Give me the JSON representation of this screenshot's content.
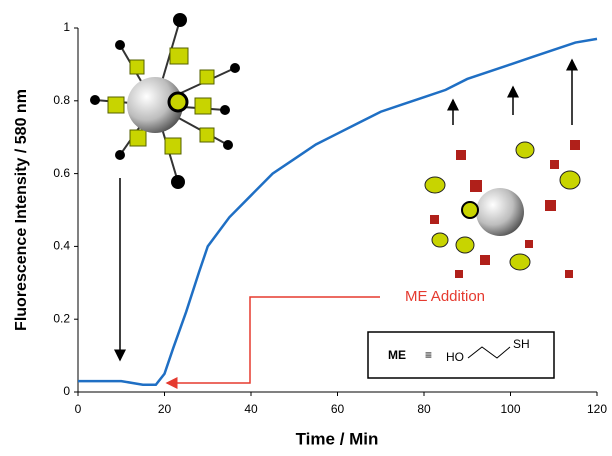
{
  "chart_data": {
    "type": "line",
    "x_label": "Time / Min",
    "y_label": "Fluorescence Intensity / 580 nm",
    "x": [
      0,
      5,
      10,
      15,
      18,
      20,
      22,
      25,
      28,
      30,
      35,
      40,
      45,
      50,
      55,
      60,
      65,
      70,
      75,
      80,
      85,
      90,
      95,
      100,
      105,
      110,
      115,
      120
    ],
    "series": [
      {
        "color": "#1f6fc4",
        "values": [
          0.03,
          0.03,
          0.03,
          0.02,
          0.02,
          0.05,
          0.12,
          0.22,
          0.33,
          0.4,
          0.48,
          0.54,
          0.6,
          0.64,
          0.68,
          0.71,
          0.74,
          0.77,
          0.79,
          0.81,
          0.83,
          0.86,
          0.88,
          0.9,
          0.92,
          0.94,
          0.96,
          0.97
        ]
      }
    ],
    "xlim": [
      0,
      120
    ],
    "xticks": [
      0,
      20,
      40,
      60,
      80,
      100,
      120
    ],
    "ylim": [
      0,
      1
    ],
    "yticks": [
      0,
      0.2,
      0.4,
      0.6,
      0.8,
      1
    ],
    "annotations": [
      "ME Addition",
      "ME",
      "≡",
      "HO",
      "SH"
    ]
  }
}
